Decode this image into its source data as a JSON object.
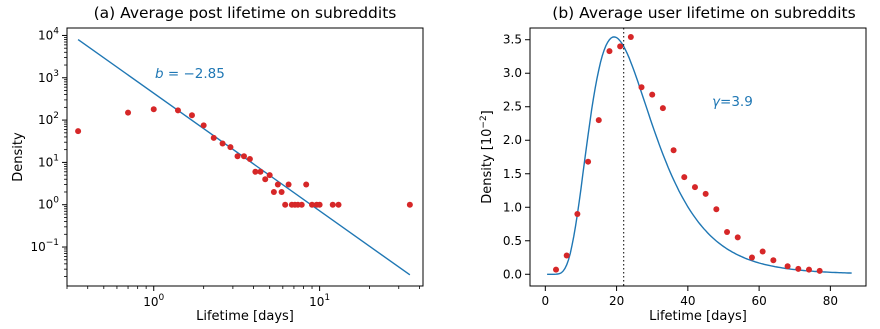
{
  "chart_data": [
    {
      "type": "scatter",
      "title": "(a) Average post lifetime on subreddits",
      "xlabel": "Lifetime [days]",
      "ylabel": "Density",
      "xscale": "log",
      "yscale": "log",
      "xlim": [
        0.3,
        42
      ],
      "ylim": [
        0.012,
        15000
      ],
      "xticks": [
        1,
        10
      ],
      "xtick_labels": [
        "10^0",
        "10^1"
      ],
      "yticks": [
        0.1,
        1,
        10,
        100,
        1000,
        10000
      ],
      "ytick_labels": [
        "10^-1",
        "10^0",
        "10^1",
        "10^2",
        "10^3",
        "10^4"
      ],
      "annotation": {
        "prefix": "b = ",
        "value": "−2.85"
      },
      "fit_line": {
        "exponent": -2.85,
        "x": [
          0.35,
          35
        ],
        "y": [
          8000,
          0.022
        ]
      },
      "points": {
        "x": [
          0.35,
          0.7,
          1.0,
          1.4,
          1.7,
          2.0,
          2.3,
          2.6,
          2.9,
          3.2,
          3.5,
          3.8,
          4.1,
          4.4,
          4.7,
          5.0,
          5.3,
          5.6,
          5.9,
          6.2,
          6.5,
          6.8,
          7.1,
          7.4,
          7.8,
          8.3,
          9.0,
          9.6,
          10.0,
          12.0,
          13.0,
          35.0
        ],
        "y": [
          55,
          150,
          180,
          170,
          130,
          75,
          38,
          28,
          23,
          14,
          14,
          12,
          6,
          6,
          4,
          5,
          2,
          3,
          2,
          1,
          3,
          1,
          1,
          1,
          1,
          3,
          1,
          1,
          1,
          1,
          1,
          1
        ]
      }
    },
    {
      "type": "scatter",
      "title": "(b) Average user lifetime on subreddits",
      "xlabel": "Lifetime [days]",
      "ylabel": "Density [10^-2]",
      "xlim": [
        -4.3,
        90
      ],
      "ylim": [
        -0.175,
        3.675
      ],
      "xticks": [
        0,
        20,
        40,
        60,
        80
      ],
      "yticks": [
        0.0,
        0.5,
        1.0,
        1.5,
        2.0,
        2.5,
        3.0,
        3.5
      ],
      "annotation": {
        "prefix": "γ=",
        "value": "3.9"
      },
      "vline_x": 22,
      "points": {
        "x": [
          3,
          6,
          9,
          12,
          15,
          18,
          21,
          24,
          27,
          30,
          33,
          36,
          39,
          42,
          45,
          48,
          51,
          54,
          58,
          61,
          64,
          68,
          71,
          74,
          77
        ],
        "y": [
          0.07,
          0.28,
          0.9,
          1.68,
          2.3,
          3.33,
          3.4,
          3.54,
          2.79,
          2.68,
          2.48,
          1.85,
          1.45,
          1.3,
          1.2,
          0.97,
          0.63,
          0.55,
          0.25,
          0.34,
          0.21,
          0.12,
          0.08,
          0.07,
          0.05
        ]
      }
    }
  ]
}
